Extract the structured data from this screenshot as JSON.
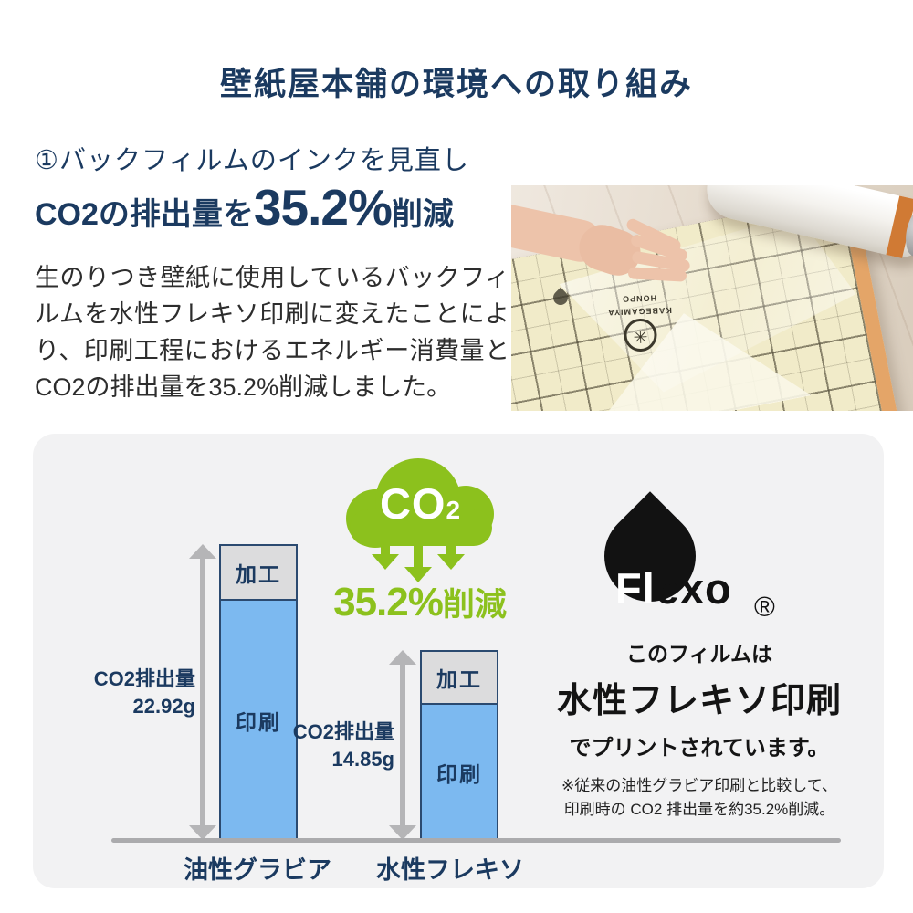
{
  "page": {
    "title": "壁紙屋本舗の環境への取り組み"
  },
  "section": {
    "heading": "①バックフィルムのインクを見直し",
    "highlight_prefix": "CO2の排出量を",
    "highlight_value": "35.2%",
    "highlight_suffix": "削減",
    "body": "生のりつき壁紙に使用しているバックフィルムを水性フレキソ印刷に変えたことにより、印刷工程におけるエネルギー消費量とCO2の排出量を35.2%削減しました。"
  },
  "photo": {
    "stamp_glyph": "✳",
    "stamp_line1": "KABEGAMIYA",
    "stamp_line2": "HONPO"
  },
  "infographic": {
    "co2_cloud": {
      "gas": "CO",
      "gas_subscript": "2",
      "reduction_value": "35.2%",
      "reduction_suffix": "削減"
    },
    "flexo": {
      "logo_left": "Fl",
      "logo_right": "exo",
      "registered_mark": "®",
      "caption_line1": "このフィルムは",
      "caption_line2": "水性フレキソ印刷",
      "caption_line3": "でプリントされています。",
      "note_line1": "※従来の油性グラビア印刷と比較して、",
      "note_line2": "印刷時の CO2 排出量を約35.2%削減。"
    }
  },
  "chart_data": {
    "type": "bar",
    "stacked": true,
    "categories": [
      "油性グラビア",
      "水性フレキソ"
    ],
    "series": [
      {
        "name": "印刷",
        "values": [
          18.6,
          10.6
        ],
        "color": "#7cb9f0"
      },
      {
        "name": "加工",
        "values": [
          4.3,
          4.25
        ],
        "color": "#dcdcdd"
      }
    ],
    "totals_g": [
      22.92,
      14.85
    ],
    "total_labels": [
      {
        "line1": "CO2排出量",
        "line2": "22.92g"
      },
      {
        "line1": "CO2排出量",
        "line2": "14.85g"
      }
    ],
    "unit": "g",
    "ylabel": "",
    "title": "",
    "baseline": true,
    "colors": {
      "bar_border": "#2b4a70",
      "arrow": "#b5b5b7",
      "label": "#1b3a60",
      "accent_green": "#8cc11d",
      "navy": "#1b3a60"
    }
  }
}
